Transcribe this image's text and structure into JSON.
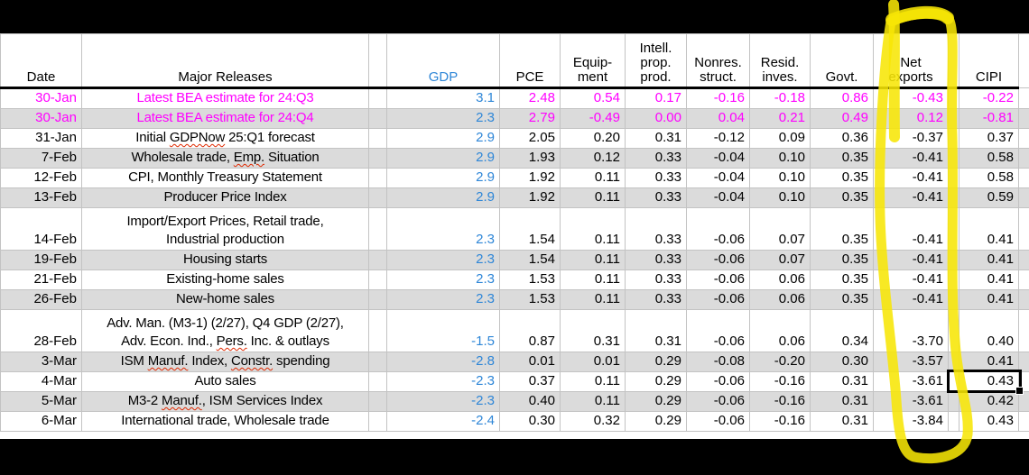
{
  "colors": {
    "magenta": "#FF00FF",
    "blue": "#2E86D7",
    "row_shade": "#DBDBDB",
    "gridline": "#C3C3C3",
    "highlight": "#F7E606",
    "redaction": "#000000",
    "misspell": "#E02800"
  },
  "columns": [
    {
      "key": "date",
      "label": "Date"
    },
    {
      "key": "releases",
      "label": "Major Releases"
    },
    {
      "key": "gdp",
      "label": "GDP"
    },
    {
      "key": "pce",
      "label": "PCE"
    },
    {
      "key": "equipment",
      "label": "Equip-\nment"
    },
    {
      "key": "intell",
      "label": "Intell.\nprop.\nprod."
    },
    {
      "key": "nonres",
      "label": "Nonres.\nstruct."
    },
    {
      "key": "resid",
      "label": "Resid.\ninves."
    },
    {
      "key": "govt",
      "label": "Govt."
    },
    {
      "key": "netexports",
      "label": "Net\nexports"
    },
    {
      "key": "cipi",
      "label": "CIPI"
    }
  ],
  "rows": [
    {
      "date": "30-Jan",
      "release": "Latest BEA estimate for 24:Q3",
      "values": [
        "3.1",
        "2.48",
        "0.54",
        "0.17",
        "-0.16",
        "-0.18",
        "0.86",
        "-0.43",
        "-0.22"
      ],
      "color": "magenta",
      "misspelled": []
    },
    {
      "date": "30-Jan",
      "release": "Latest BEA estimate for 24:Q4",
      "values": [
        "2.3",
        "2.79",
        "-0.49",
        "0.00",
        "0.04",
        "0.21",
        "0.49",
        "0.12",
        "-0.81"
      ],
      "color": "magenta",
      "misspelled": []
    },
    {
      "date": "31-Jan",
      "release": "Initial GDPNow 25:Q1 forecast",
      "values": [
        "2.9",
        "2.05",
        "0.20",
        "0.31",
        "-0.12",
        "0.09",
        "0.36",
        "-0.37",
        "0.37"
      ],
      "misspelled": [
        "GDPNow"
      ]
    },
    {
      "date": "7-Feb",
      "release": "Wholesale trade, Emp. Situation",
      "values": [
        "2.9",
        "1.93",
        "0.12",
        "0.33",
        "-0.04",
        "0.10",
        "0.35",
        "-0.41",
        "0.58"
      ],
      "misspelled": [
        "Emp."
      ]
    },
    {
      "date": "12-Feb",
      "release": "CPI, Monthly Treasury Statement",
      "values": [
        "2.9",
        "1.92",
        "0.11",
        "0.33",
        "-0.04",
        "0.10",
        "0.35",
        "-0.41",
        "0.58"
      ],
      "misspelled": []
    },
    {
      "date": "13-Feb",
      "release": "Producer Price Index",
      "values": [
        "2.9",
        "1.92",
        "0.11",
        "0.33",
        "-0.04",
        "0.10",
        "0.35",
        "-0.41",
        "0.59"
      ],
      "misspelled": []
    },
    {
      "date": "14-Feb",
      "release": "Import/Export Prices, Retail trade,\nIndustrial production",
      "values": [
        "2.3",
        "1.54",
        "0.11",
        "0.33",
        "-0.06",
        "0.07",
        "0.35",
        "-0.41",
        "0.41"
      ],
      "tall": true,
      "misspelled": []
    },
    {
      "date": "19-Feb",
      "release": "Housing starts",
      "values": [
        "2.3",
        "1.54",
        "0.11",
        "0.33",
        "-0.06",
        "0.07",
        "0.35",
        "-0.41",
        "0.41"
      ],
      "misspelled": []
    },
    {
      "date": "21-Feb",
      "release": "Existing-home sales",
      "values": [
        "2.3",
        "1.53",
        "0.11",
        "0.33",
        "-0.06",
        "0.06",
        "0.35",
        "-0.41",
        "0.41"
      ],
      "misspelled": []
    },
    {
      "date": "26-Feb",
      "release": "New-home sales",
      "values": [
        "2.3",
        "1.53",
        "0.11",
        "0.33",
        "-0.06",
        "0.06",
        "0.35",
        "-0.41",
        "0.41"
      ],
      "misspelled": []
    },
    {
      "date": "28-Feb",
      "release": "Adv. Man. (M3-1) (2/27), Q4 GDP (2/27),\nAdv. Econ. Ind., Pers. Inc. & outlays",
      "values": [
        "-1.5",
        "0.87",
        "0.31",
        "0.31",
        "-0.06",
        "0.06",
        "0.34",
        "-3.70",
        "0.40"
      ],
      "tall": true,
      "misspelled": [
        "Pers."
      ]
    },
    {
      "date": "3-Mar",
      "release": "ISM Manuf. Index, Constr. spending",
      "values": [
        "-2.8",
        "0.01",
        "0.01",
        "0.29",
        "-0.08",
        "-0.20",
        "0.30",
        "-3.57",
        "0.41"
      ],
      "misspelled": [
        "Manuf.",
        "Constr."
      ]
    },
    {
      "date": "4-Mar",
      "release": "Auto sales",
      "values": [
        "-2.3",
        "0.37",
        "0.11",
        "0.29",
        "-0.06",
        "-0.16",
        "0.31",
        "-3.61",
        "0.43"
      ],
      "misspelled": []
    },
    {
      "date": "5-Mar",
      "release": "M3-2 Manuf., ISM Services Index",
      "values": [
        "-2.3",
        "0.40",
        "0.11",
        "0.29",
        "-0.06",
        "-0.16",
        "0.31",
        "-3.61",
        "0.42"
      ],
      "misspelled": [
        "Manuf."
      ]
    },
    {
      "date": "6-Mar",
      "release": "International trade, Wholesale trade",
      "values": [
        "-2.4",
        "0.30",
        "0.32",
        "0.29",
        "-0.06",
        "-0.16",
        "0.31",
        "-3.84",
        "0.43"
      ],
      "misspelled": []
    }
  ],
  "annotations": {
    "highlight": {
      "shape": "hand-drawn marker loop",
      "around_column": "Net exports",
      "color": "#F7E606"
    },
    "active_cell": {
      "row_date": "4-Mar",
      "column": "CIPI",
      "value": "0.43"
    }
  }
}
